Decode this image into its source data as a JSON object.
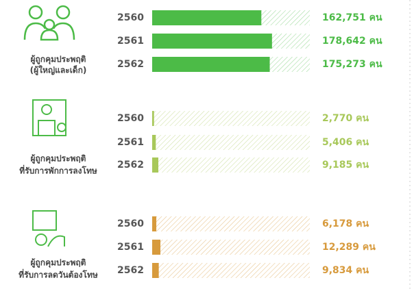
{
  "chart_data": [
    {
      "type": "bar",
      "title": [
        "ผู้ถูกคุมประพฤติ",
        "(ผู้ใหญ่และเด็ก)"
      ],
      "categories": [
        "2560",
        "2561",
        "2562"
      ],
      "values": [
        162751,
        178642,
        175273
      ],
      "value_labels": [
        "162,751 คน",
        "178,642 คน",
        "175,273 คน"
      ],
      "color": "#4cbb47",
      "xlim": [
        0,
        235000
      ]
    },
    {
      "type": "bar",
      "title": [
        "ผู้ถูกคุมประพฤติ",
        "ที่รับการพักการลงโทษ"
      ],
      "categories": [
        "2560",
        "2561",
        "2562"
      ],
      "values": [
        2770,
        5406,
        9185
      ],
      "value_labels": [
        "2,770 คน",
        "5,406 คน",
        "9,185 คน"
      ],
      "color": "#a8c85a",
      "xlim": [
        0,
        235000
      ]
    },
    {
      "type": "bar",
      "title": [
        "ผู้ถูกคุมประพฤติ",
        "ที่รับการลดวันต้องโทษ"
      ],
      "categories": [
        "2560",
        "2561",
        "2562"
      ],
      "values": [
        6178,
        12289,
        9834
      ],
      "value_labels": [
        "6,178 คน",
        "12,289 คน",
        "9,834 คน"
      ],
      "color": "#d79a3c",
      "xlim": [
        0,
        235000
      ]
    }
  ]
}
